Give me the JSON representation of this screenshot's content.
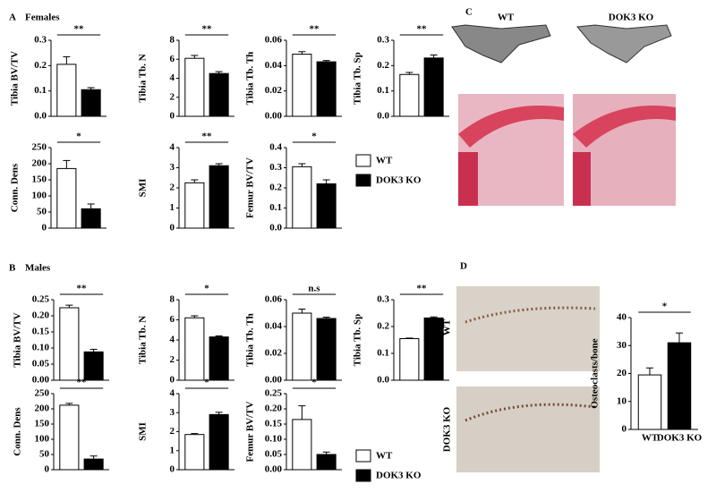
{
  "panels": [
    {
      "label": "A",
      "title": "Females"
    },
    {
      "label": "B",
      "title": "Males"
    },
    {
      "label": "C"
    },
    {
      "label": "D"
    }
  ],
  "legends": [
    {
      "items": [
        {
          "name": "WT",
          "color": "#ffffff"
        },
        {
          "name": "DOK3 KO",
          "color": "#000000"
        }
      ]
    },
    {
      "items": [
        {
          "name": "WT",
          "color": "#ffffff"
        },
        {
          "name": "DOK3 KO",
          "color": "#000000"
        }
      ]
    }
  ],
  "image_labels": [
    "WT",
    "DOK3 KO",
    "WT",
    "DOK3 KO"
  ],
  "chart_data": [
    {
      "type": "bar",
      "ylabel": "Tibia BV/TV",
      "categories": [
        null,
        null
      ],
      "values": [
        0.205,
        0.105
      ],
      "errors": [
        0.03,
        0.008
      ],
      "colors": [
        "#ffffff",
        "#000000"
      ],
      "ylim": [
        0,
        0.3
      ],
      "yticks": [
        {
          "value": 0,
          "label": "0.0"
        },
        0.1,
        0.2,
        0.3
      ],
      "annotation": "**"
    },
    {
      "type": "bar",
      "ylabel": "Tibia Tb. N",
      "categories": [
        null,
        null
      ],
      "values": [
        6.1,
        4.5
      ],
      "errors": [
        0.3,
        0.2
      ],
      "colors": [
        "#ffffff",
        "#000000"
      ],
      "ylim": [
        0,
        8
      ],
      "yticks": [
        0,
        2,
        4,
        6,
        8
      ],
      "annotation": "**"
    },
    {
      "type": "bar",
      "ylabel": "Tibia Tb. Th",
      "categories": [
        null,
        null
      ],
      "values": [
        0.049,
        0.043
      ],
      "errors": [
        0.002,
        0.001
      ],
      "colors": [
        "#ffffff",
        "#000000"
      ],
      "ylim": [
        0,
        0.06
      ],
      "yticks": [
        {
          "value": 0,
          "label": "0.00"
        },
        0.02,
        0.04,
        0.06
      ],
      "annotation": "**"
    },
    {
      "type": "bar",
      "ylabel": "Tibia Tb. Sp",
      "categories": [
        null,
        null
      ],
      "values": [
        0.165,
        0.23
      ],
      "errors": [
        0.008,
        0.012
      ],
      "colors": [
        "#ffffff",
        "#000000"
      ],
      "ylim": [
        0,
        0.3
      ],
      "yticks": [
        {
          "value": 0,
          "label": "0.0"
        },
        0.1,
        0.2,
        0.3
      ],
      "annotation": "**"
    },
    {
      "type": "bar",
      "ylabel": "Conn. Dens",
      "categories": [
        null,
        null
      ],
      "values": [
        185,
        60
      ],
      "errors": [
        25,
        15
      ],
      "colors": [
        "#ffffff",
        "#000000"
      ],
      "ylim": [
        0,
        250
      ],
      "yticks": [
        0,
        50,
        100,
        150,
        200,
        250
      ],
      "annotation": "*"
    },
    {
      "type": "bar",
      "ylabel": "SMI",
      "categories": [
        null,
        null
      ],
      "values": [
        2.25,
        3.1
      ],
      "errors": [
        0.15,
        0.1
      ],
      "colors": [
        "#ffffff",
        "#000000"
      ],
      "ylim": [
        0,
        4
      ],
      "yticks": [
        0,
        1,
        2,
        3,
        4
      ],
      "annotation": "**"
    },
    {
      "type": "bar",
      "ylabel": "Femur BV/TV",
      "categories": [
        null,
        null
      ],
      "values": [
        0.305,
        0.22
      ],
      "errors": [
        0.015,
        0.02
      ],
      "colors": [
        "#ffffff",
        "#000000"
      ],
      "ylim": [
        0,
        0.4
      ],
      "yticks": [
        {
          "value": 0,
          "label": "0.0"
        },
        0.1,
        0.2,
        0.3,
        0.4
      ],
      "annotation": "*"
    },
    {
      "type": "bar",
      "ylabel": "Tibia BV/TV",
      "categories": [
        null,
        null
      ],
      "values": [
        0.225,
        0.088
      ],
      "errors": [
        0.008,
        0.008
      ],
      "colors": [
        "#ffffff",
        "#000000"
      ],
      "ylim": [
        0,
        0.25
      ],
      "yticks": [
        {
          "value": 0,
          "label": "0.00"
        },
        0.05,
        {
          "value": 0.1,
          "label": "0.10"
        },
        0.15,
        {
          "value": 0.2,
          "label": "0.20"
        },
        0.25
      ],
      "annotation": "**"
    },
    {
      "type": "bar",
      "ylabel": "Tibia Tb. N",
      "categories": [
        null,
        null
      ],
      "values": [
        6.2,
        4.3
      ],
      "errors": [
        0.2,
        0.1
      ],
      "colors": [
        "#ffffff",
        "#000000"
      ],
      "ylim": [
        0,
        8
      ],
      "yticks": [
        0,
        2,
        4,
        6,
        8
      ],
      "annotation": "*"
    },
    {
      "type": "bar",
      "ylabel": "Tibia Tb. Th",
      "categories": [
        null,
        null
      ],
      "values": [
        0.05,
        0.046
      ],
      "errors": [
        0.003,
        0.001
      ],
      "colors": [
        "#ffffff",
        "#000000"
      ],
      "ylim": [
        0,
        0.06
      ],
      "yticks": [
        {
          "value": 0,
          "label": "0.00"
        },
        0.02,
        0.04,
        0.06
      ],
      "annotation": "n.s"
    },
    {
      "type": "bar",
      "ylabel": "Tibia Tb. Sp",
      "categories": [
        null,
        null
      ],
      "values": [
        0.155,
        0.232
      ],
      "errors": [
        0.002,
        0.004
      ],
      "colors": [
        "#ffffff",
        "#000000"
      ],
      "ylim": [
        0,
        0.3
      ],
      "yticks": [
        {
          "value": 0,
          "label": "0.0"
        },
        0.1,
        0.2,
        0.3
      ],
      "annotation": "**"
    },
    {
      "type": "bar",
      "ylabel": "Conn. Dens",
      "categories": [
        null,
        null
      ],
      "values": [
        212,
        35
      ],
      "errors": [
        6,
        10
      ],
      "colors": [
        "#ffffff",
        "#000000"
      ],
      "ylim": [
        0,
        250
      ],
      "yticks": [
        0,
        50,
        100,
        150,
        200,
        250
      ],
      "annotation": "**"
    },
    {
      "type": "bar",
      "ylabel": "SMI",
      "categories": [
        null,
        null
      ],
      "values": [
        1.85,
        2.9
      ],
      "errors": [
        0.05,
        0.12
      ],
      "colors": [
        "#ffffff",
        "#000000"
      ],
      "ylim": [
        0,
        4
      ],
      "yticks": [
        0,
        1,
        2,
        3,
        4
      ],
      "annotation": "*"
    },
    {
      "type": "bar",
      "ylabel": "Femur BV/TV",
      "categories": [
        null,
        null
      ],
      "values": [
        0.165,
        0.05
      ],
      "errors": [
        0.045,
        0.008
      ],
      "colors": [
        "#ffffff",
        "#000000"
      ],
      "ylim": [
        0,
        0.25
      ],
      "yticks": [
        {
          "value": 0,
          "label": "0.00"
        },
        0.05,
        {
          "value": 0.1,
          "label": "0.10"
        },
        0.15,
        {
          "value": 0.2,
          "label": "0.20"
        },
        0.25
      ],
      "annotation": "*"
    },
    {
      "type": "bar",
      "ylabel": "Osteoclasts/bone",
      "categories": [
        "WT",
        "DOK3 KO"
      ],
      "values": [
        19.5,
        31
      ],
      "errors": [
        2.5,
        3.5
      ],
      "colors": [
        "#ffffff",
        "#000000"
      ],
      "ylim": [
        0,
        40
      ],
      "yticks": [
        0,
        10,
        20,
        30,
        40
      ],
      "annotation": "*"
    }
  ]
}
